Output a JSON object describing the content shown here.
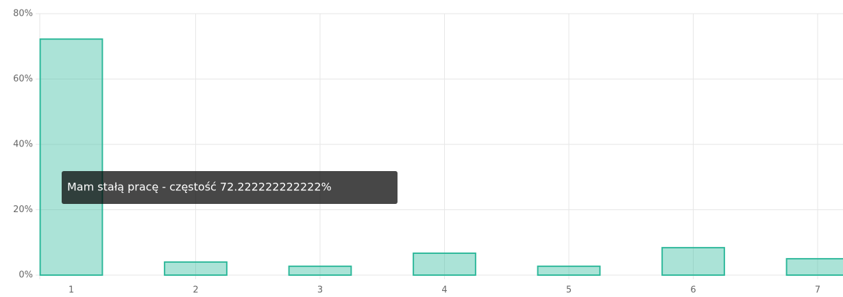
{
  "chart_data": {
    "type": "bar",
    "categories": [
      "1",
      "2",
      "3",
      "4",
      "5",
      "6",
      "7"
    ],
    "values": [
      72.222222222222,
      4.0,
      2.7,
      6.7,
      2.7,
      8.4,
      5.0
    ],
    "color": "#2db89a",
    "ylim": [
      0,
      80
    ],
    "yticks": [
      {
        "value": 0,
        "label": "0%"
      },
      {
        "value": 20,
        "label": "20%"
      },
      {
        "value": 40,
        "label": "40%"
      },
      {
        "value": 60,
        "label": "60%"
      },
      {
        "value": 80,
        "label": "80%"
      }
    ],
    "grid": true,
    "tooltip": "Mam stałą pracę - częstość 72.222222222222%"
  }
}
